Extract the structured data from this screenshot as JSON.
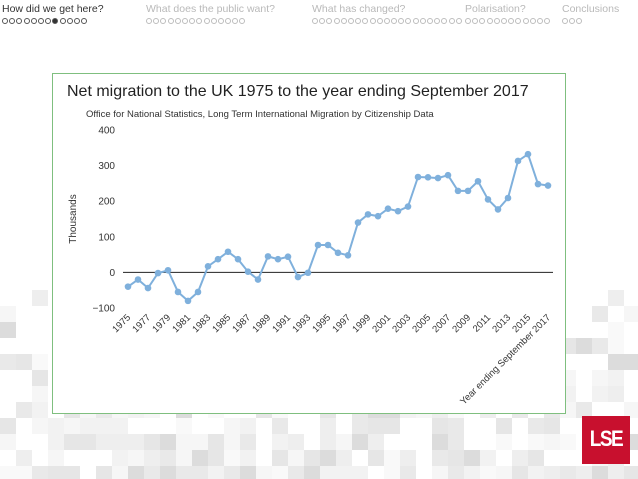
{
  "nav": {
    "sections": [
      {
        "label": "How did we get here?",
        "dots": 12,
        "current": 7,
        "active": true
      },
      {
        "label": "What does the public want?",
        "dots": 14,
        "current": -1,
        "active": false
      },
      {
        "label": "What has changed?",
        "dots": 21,
        "current": -1,
        "active": false
      },
      {
        "label": "Polarisation?",
        "dots": 12,
        "current": -1,
        "active": false
      },
      {
        "label": "Conclusions",
        "dots": 3,
        "current": -1,
        "active": false
      }
    ]
  },
  "colors": {
    "line": "#7fb0dc",
    "marker": "#7fb0dc",
    "card_border": "#7fbf7f",
    "logo_bg": "#c8102e"
  },
  "logo": {
    "text": "LSE"
  },
  "chart_data": {
    "type": "line",
    "title": "Net migration to the UK 1975 to the year ending September 2017",
    "subtitle": "Office for National Statistics, Long Term International Migration by Citizenship Data",
    "ylabel": "Thousands",
    "xlabel": "",
    "ylim": [
      -100,
      400
    ],
    "yticks": [
      -100,
      0,
      100,
      200,
      300,
      400
    ],
    "grid": false,
    "zero_line": true,
    "categories": [
      "1975",
      "1976",
      "1977",
      "1978",
      "1979",
      "1980",
      "1981",
      "1982",
      "1983",
      "1984",
      "1985",
      "1986",
      "1987",
      "1988",
      "1989",
      "1990",
      "1991",
      "1992",
      "1993",
      "1994",
      "1995",
      "1996",
      "1997",
      "1998",
      "1999",
      "2000",
      "2001",
      "2002",
      "2003",
      "2004",
      "2005",
      "2006",
      "2007",
      "2008",
      "2009",
      "2010",
      "2011",
      "2012",
      "2013",
      "2014",
      "2015",
      "2016",
      "Year ending September 2017"
    ],
    "xtick_labels": [
      "1975",
      "1977",
      "1979",
      "1981",
      "1983",
      "1985",
      "1987",
      "1989",
      "1991",
      "1993",
      "1995",
      "1997",
      "1999",
      "2001",
      "2003",
      "2005",
      "2007",
      "2009",
      "2011",
      "2013",
      "2015",
      "Year ending September 2017"
    ],
    "series": [
      {
        "values": [
          -40,
          -20,
          -44,
          -2,
          6,
          -55,
          -80,
          -55,
          17,
          37,
          58,
          37,
          2,
          -20,
          45,
          37,
          44,
          -13,
          -1,
          77,
          77,
          55,
          48,
          140,
          163,
          158,
          179,
          172,
          185,
          268,
          267,
          265,
          273,
          229,
          229,
          256,
          205,
          177,
          209,
          313,
          332,
          248,
          244
        ]
      }
    ]
  }
}
